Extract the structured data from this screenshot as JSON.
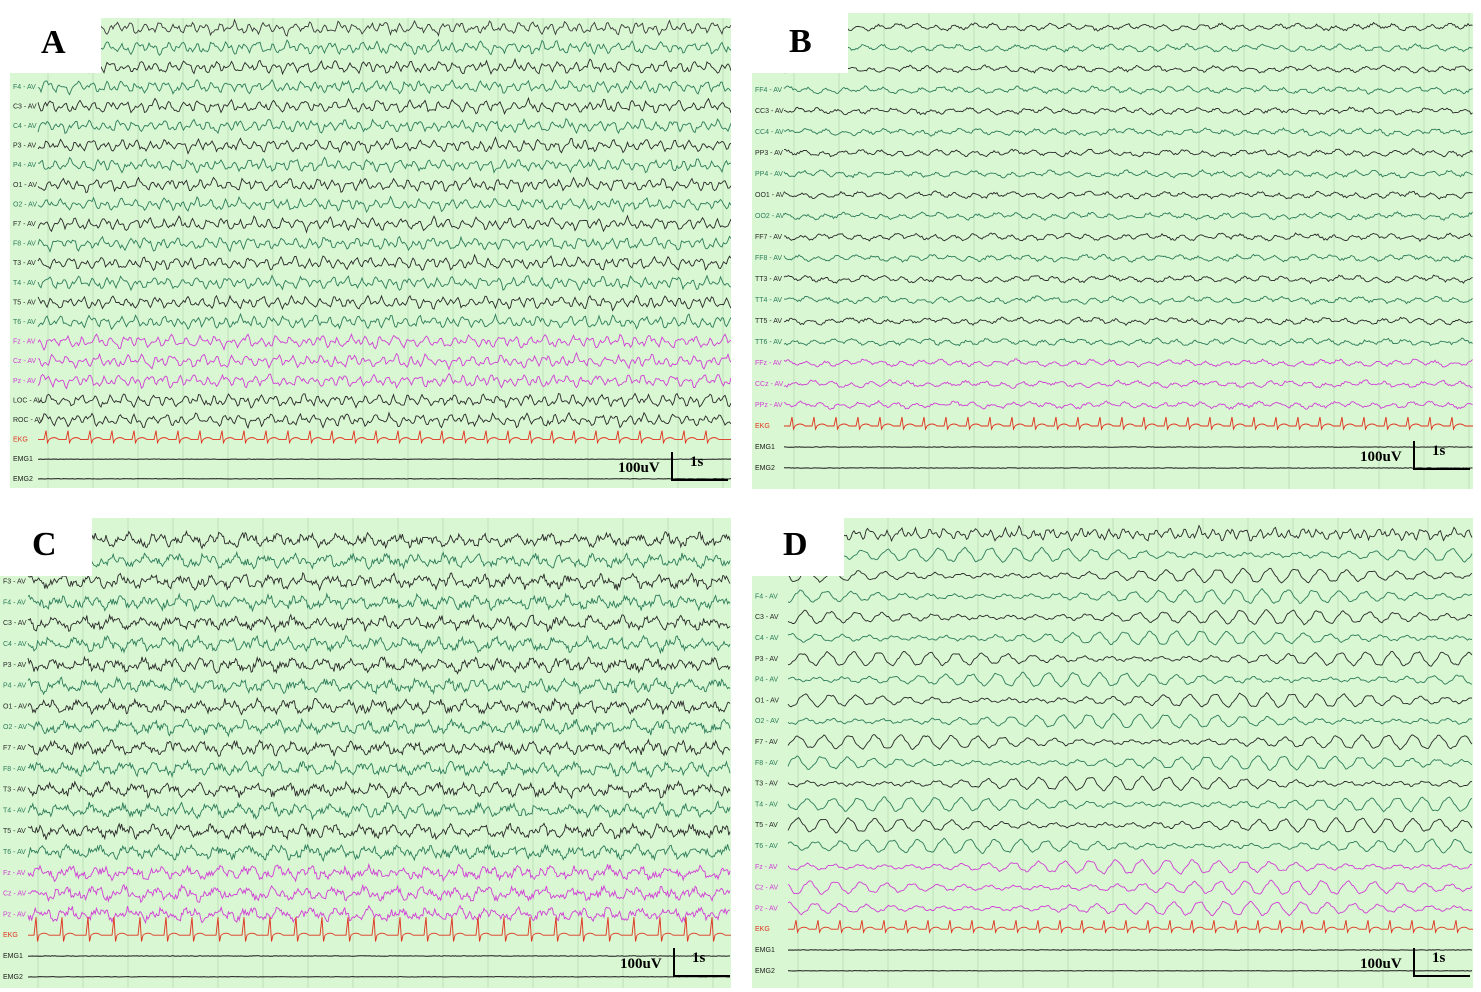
{
  "figure": {
    "panels": [
      {
        "id": "A",
        "letter": "A",
        "channels": [
          {
            "label": "",
            "color": "#3a3a3a",
            "style": "fast"
          },
          {
            "label": "",
            "color": "#2e7d5b",
            "style": "fast"
          },
          {
            "label": "",
            "color": "#2a2a2a",
            "style": "fast"
          },
          {
            "label": "F4 - AV",
            "color": "#2e7d5b",
            "style": "fast"
          },
          {
            "label": "C3 - AV",
            "color": "#2a2a2a",
            "style": "fast"
          },
          {
            "label": "C4 - AV",
            "color": "#2e7d5b",
            "style": "fast"
          },
          {
            "label": "P3 - AV",
            "color": "#2a2a2a",
            "style": "fast"
          },
          {
            "label": "P4 - AV",
            "color": "#2e7d5b",
            "style": "fast"
          },
          {
            "label": "O1 - AV",
            "color": "#2a2a2a",
            "style": "fast"
          },
          {
            "label": "O2 - AV",
            "color": "#2e7d5b",
            "style": "fast"
          },
          {
            "label": "F7 - AV",
            "color": "#2a2a2a",
            "style": "fast"
          },
          {
            "label": "F8 - AV",
            "color": "#2e7d5b",
            "style": "fast"
          },
          {
            "label": "T3 - AV",
            "color": "#2a2a2a",
            "style": "fast"
          },
          {
            "label": "T4 - AV",
            "color": "#2e7d5b",
            "style": "fast"
          },
          {
            "label": "T5 - AV",
            "color": "#2a2a2a",
            "style": "fast"
          },
          {
            "label": "T6 - AV",
            "color": "#2e7d5b",
            "style": "fast"
          },
          {
            "label": "Fz - AV",
            "color": "#d13fd6",
            "style": "fast"
          },
          {
            "label": "Cz - AV",
            "color": "#d13fd6",
            "style": "fast"
          },
          {
            "label": "Pz - AV",
            "color": "#d13fd6",
            "style": "fast"
          },
          {
            "label": "LOC - AV",
            "color": "#2a2a2a",
            "style": "fast"
          },
          {
            "label": "ROC - AV",
            "color": "#2a2a2a",
            "style": "fast"
          },
          {
            "label": "EKG",
            "color": "#e0321e",
            "style": "ekg"
          },
          {
            "label": "EMG1",
            "color": "#1a1a1a",
            "style": "flat"
          },
          {
            "label": "EMG2",
            "color": "#1a1a1a",
            "style": "flat"
          }
        ],
        "scale": {
          "amplitude": "100uV",
          "time": "1s"
        }
      },
      {
        "id": "B",
        "letter": "B",
        "channels": [
          {
            "label": "",
            "color": "#2a2a2a",
            "style": "low"
          },
          {
            "label": "",
            "color": "#2e7d5b",
            "style": "low"
          },
          {
            "label": "",
            "color": "#2a2a2a",
            "style": "low"
          },
          {
            "label": "FF4 - AV",
            "color": "#2e7d5b",
            "style": "low"
          },
          {
            "label": "CC3 - AV",
            "color": "#2a2a2a",
            "style": "low"
          },
          {
            "label": "CC4 - AV",
            "color": "#2e7d5b",
            "style": "low"
          },
          {
            "label": "PP3 - AV",
            "color": "#2a2a2a",
            "style": "low"
          },
          {
            "label": "PP4 - AV",
            "color": "#2e7d5b",
            "style": "low"
          },
          {
            "label": "OO1 - AV",
            "color": "#2a2a2a",
            "style": "low"
          },
          {
            "label": "OO2 - AV",
            "color": "#2e7d5b",
            "style": "low"
          },
          {
            "label": "FF7 - AV",
            "color": "#2a2a2a",
            "style": "low"
          },
          {
            "label": "FF8 - AV",
            "color": "#2e7d5b",
            "style": "low"
          },
          {
            "label": "TT3 - AV",
            "color": "#2a2a2a",
            "style": "low"
          },
          {
            "label": "TT4 - AV",
            "color": "#2e7d5b",
            "style": "low"
          },
          {
            "label": "TT5 - AV",
            "color": "#2a2a2a",
            "style": "low"
          },
          {
            "label": "TT6 - AV",
            "color": "#2e7d5b",
            "style": "low"
          },
          {
            "label": "FFz - AV",
            "color": "#d13fd6",
            "style": "low"
          },
          {
            "label": "CCz - AV",
            "color": "#d13fd6",
            "style": "low"
          },
          {
            "label": "PPz - AV",
            "color": "#d13fd6",
            "style": "low"
          },
          {
            "label": "EKG",
            "color": "#e0321e",
            "style": "ekg"
          },
          {
            "label": "EMG1",
            "color": "#1a1a1a",
            "style": "flat"
          },
          {
            "label": "EMG2",
            "color": "#1a1a1a",
            "style": "flat"
          }
        ],
        "scale": {
          "amplitude": "100uV",
          "time": "1s"
        }
      },
      {
        "id": "C",
        "letter": "C",
        "channels": [
          {
            "label": "",
            "color": "#2a2a2a",
            "style": "spiky"
          },
          {
            "label": "",
            "color": "#2e7d5b",
            "style": "spiky"
          },
          {
            "label": "F3 - AV",
            "color": "#2a2a2a",
            "style": "spiky"
          },
          {
            "label": "F4 - AV",
            "color": "#2e7d5b",
            "style": "spiky"
          },
          {
            "label": "C3 - AV",
            "color": "#2a2a2a",
            "style": "spiky"
          },
          {
            "label": "C4 - AV",
            "color": "#2e7d5b",
            "style": "spiky"
          },
          {
            "label": "P3 - AV",
            "color": "#2a2a2a",
            "style": "spiky"
          },
          {
            "label": "P4 - AV",
            "color": "#2e7d5b",
            "style": "spiky"
          },
          {
            "label": "O1 - AV",
            "color": "#2a2a2a",
            "style": "spiky"
          },
          {
            "label": "O2 - AV",
            "color": "#2e7d5b",
            "style": "spiky"
          },
          {
            "label": "F7 - AV",
            "color": "#2a2a2a",
            "style": "spiky"
          },
          {
            "label": "F8 - AV",
            "color": "#2e7d5b",
            "style": "spiky"
          },
          {
            "label": "T3 - AV",
            "color": "#2a2a2a",
            "style": "spiky"
          },
          {
            "label": "T4 - AV",
            "color": "#2e7d5b",
            "style": "spiky"
          },
          {
            "label": "T5 - AV",
            "color": "#2a2a2a",
            "style": "spiky"
          },
          {
            "label": "T6 - AV",
            "color": "#2e7d5b",
            "style": "spiky"
          },
          {
            "label": "Fz - AV",
            "color": "#d13fd6",
            "style": "spiky"
          },
          {
            "label": "Cz - AV",
            "color": "#d13fd6",
            "style": "spiky"
          },
          {
            "label": "Pz - AV",
            "color": "#d13fd6",
            "style": "spiky"
          },
          {
            "label": "EKG",
            "color": "#e0321e",
            "style": "ekgbig"
          },
          {
            "label": "EMG1",
            "color": "#1a1a1a",
            "style": "flat"
          },
          {
            "label": "EMG2",
            "color": "#1a1a1a",
            "style": "flat"
          }
        ],
        "scale": {
          "amplitude": "100uV",
          "time": "1s"
        }
      },
      {
        "id": "D",
        "letter": "D",
        "channels": [
          {
            "label": "",
            "color": "#2a2a2a",
            "style": "fast"
          },
          {
            "label": "",
            "color": "#2e7d5b",
            "style": "theta"
          },
          {
            "label": "",
            "color": "#2a2a2a",
            "style": "theta"
          },
          {
            "label": "F4 - AV",
            "color": "#2e7d5b",
            "style": "theta"
          },
          {
            "label": "C3 - AV",
            "color": "#2a2a2a",
            "style": "theta"
          },
          {
            "label": "C4 - AV",
            "color": "#2e7d5b",
            "style": "theta"
          },
          {
            "label": "P3 - AV",
            "color": "#2a2a2a",
            "style": "theta"
          },
          {
            "label": "P4 - AV",
            "color": "#2e7d5b",
            "style": "theta"
          },
          {
            "label": "O1 - AV",
            "color": "#2a2a2a",
            "style": "theta"
          },
          {
            "label": "O2 - AV",
            "color": "#2e7d5b",
            "style": "theta"
          },
          {
            "label": "F7 - AV",
            "color": "#2a2a2a",
            "style": "theta"
          },
          {
            "label": "F8 - AV",
            "color": "#2e7d5b",
            "style": "theta"
          },
          {
            "label": "T3 - AV",
            "color": "#2a2a2a",
            "style": "theta"
          },
          {
            "label": "T4 - AV",
            "color": "#2e7d5b",
            "style": "theta"
          },
          {
            "label": "T5 - AV",
            "color": "#2a2a2a",
            "style": "theta"
          },
          {
            "label": "T6 - AV",
            "color": "#2e7d5b",
            "style": "theta"
          },
          {
            "label": "Fz - AV",
            "color": "#d13fd6",
            "style": "theta"
          },
          {
            "label": "Cz - AV",
            "color": "#d13fd6",
            "style": "theta"
          },
          {
            "label": "Pz - AV",
            "color": "#d13fd6",
            "style": "theta"
          },
          {
            "label": "EKG",
            "color": "#e0321e",
            "style": "ekg"
          },
          {
            "label": "EMG1",
            "color": "#1a1a1a",
            "style": "flat"
          },
          {
            "label": "EMG2",
            "color": "#1a1a1a",
            "style": "flat"
          }
        ],
        "scale": {
          "amplitude": "100uV",
          "time": "1s"
        }
      }
    ],
    "colors": {
      "background": "#d9f7d2",
      "grid_line": "#b9dcb8"
    }
  }
}
